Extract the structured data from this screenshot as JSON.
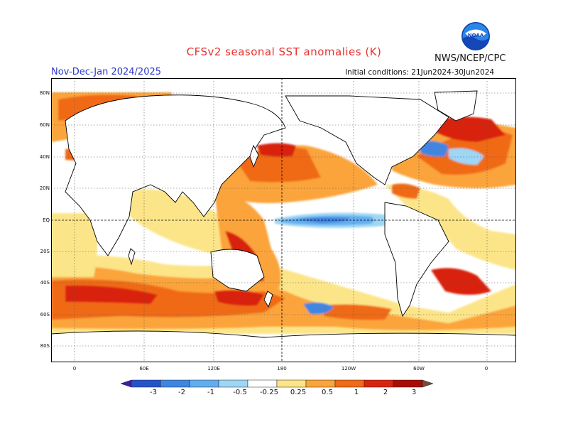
{
  "header": {
    "title": "CFSv2 seasonal SST anomalies (K)",
    "agency": "NWS/NCEP/CPC",
    "period": "Nov-Dec-Jan 2024/2025",
    "initial_conditions": "Initial conditions: 21Jun2024-30Jun2024",
    "logo_text": "NOAA"
  },
  "map": {
    "lat_labels": [
      "80N",
      "60N",
      "40N",
      "20N",
      "EQ",
      "20S",
      "40S",
      "60S",
      "80S"
    ],
    "lon_labels": [
      "0",
      "60E",
      "120E",
      "180",
      "120W",
      "60W",
      "0"
    ]
  },
  "colorbar": {
    "labels": [
      "-3",
      "-2",
      "-1",
      "-0.5",
      "-0.25",
      "0.25",
      "0.5",
      "1",
      "2",
      "3"
    ],
    "colors": [
      "#3b1fa8",
      "#2553c9",
      "#3f86e0",
      "#62adf0",
      "#9ed6f5",
      "#ffffff",
      "#fce588",
      "#fba43a",
      "#f06a17",
      "#d9230f",
      "#a80c07",
      "#7a4a3a"
    ]
  }
}
